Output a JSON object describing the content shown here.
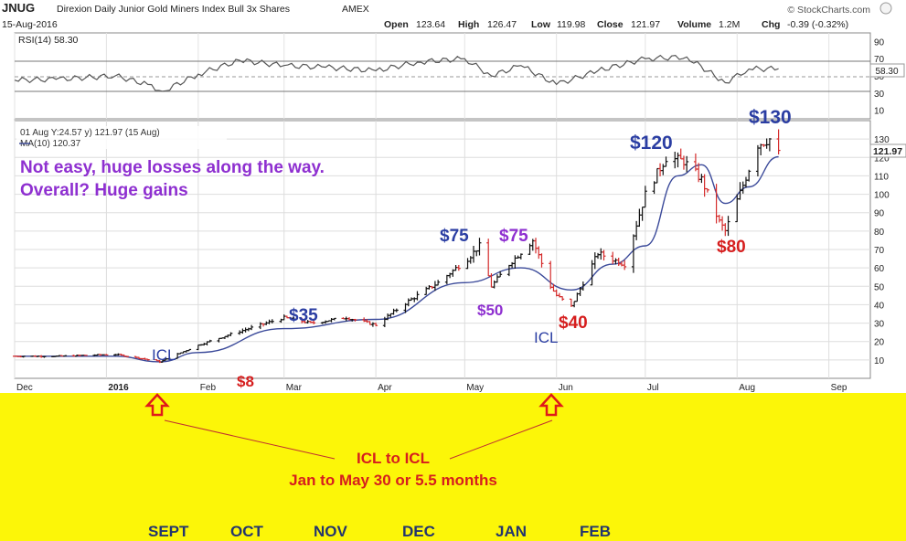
{
  "header": {
    "symbol": "JNUG",
    "name": "Direxion Daily Junior Gold Miners Index Bull 3x Shares",
    "exchange": "AMEX",
    "date": "15-Aug-2016",
    "source": "© StockCharts.com",
    "open_label": "Open",
    "open_value": "123.64",
    "high_label": "High",
    "high_value": "126.47",
    "low_label": "Low",
    "low_value": "119.98",
    "close_label": "Close",
    "close_value": "121.97",
    "volume_label": "Volume",
    "volume_value": "1.2M",
    "chg_label": "Chg",
    "chg_value": "-0.39 (-0.32%)"
  },
  "rsi_panel": {
    "label": "RSI(14) 58.30",
    "tick_labels": [
      "90",
      "70",
      "50",
      "30",
      "10"
    ],
    "last_value_badge": "58.30"
  },
  "price_panel": {
    "legend_line1": "01 Aug Y:24.57 y) 121.97 (15 Aug)",
    "legend_line2": "MA(10) 120.37",
    "last_price_badge": "121.97",
    "tick_labels": [
      "130",
      "120",
      "110",
      "100",
      "90",
      "80",
      "70",
      "60",
      "50",
      "40",
      "30",
      "20",
      "10"
    ]
  },
  "x_axis": {
    "labels": [
      "Dec",
      "2016",
      "Feb",
      "Mar",
      "Apr",
      "May",
      "Jun",
      "Jul",
      "Aug",
      "Sep"
    ]
  },
  "annotations": {
    "headline_line1": "Not easy,  huge losses along the way.",
    "headline_line2": "Overall? Huge gains",
    "icl_1": "ICL",
    "icl_2": "ICL",
    "low_8": "$8",
    "p35": "$35",
    "p75a": "$75",
    "p75b": "$75",
    "p50": "$50",
    "p40": "$40",
    "p120": "$120",
    "p80": "$80",
    "p130": "$130",
    "icl_span_line1": "ICL  to  ICL",
    "icl_span_line2": "Jan to May 30 or  5.5 months"
  },
  "bottom_months": [
    "SEPT",
    "OCT",
    "NOV",
    "DEC",
    "JAN",
    "FEB"
  ],
  "colors": {
    "up": "#111111",
    "down": "#d42a2a",
    "ma": "#3b4a9a",
    "annotation_blue": "#2b3ea3",
    "annotation_purple": "#8e2fd0",
    "annotation_red": "#d61e1e",
    "highlight_bg": "#fcf608"
  },
  "chart_data": [
    {
      "type": "line",
      "title": "RSI(14) 58.30",
      "y_range": [
        0,
        100
      ],
      "reference_lines": [
        70,
        50,
        30
      ],
      "x": [
        "2015-12-01",
        "2015-12-15",
        "2016-01-04",
        "2016-01-15",
        "2016-01-20",
        "2016-02-01",
        "2016-02-15",
        "2016-03-01",
        "2016-03-15",
        "2016-04-01",
        "2016-04-15",
        "2016-05-01",
        "2016-05-10",
        "2016-05-20",
        "2016-06-01",
        "2016-06-15",
        "2016-07-01",
        "2016-07-15",
        "2016-07-28",
        "2016-08-05",
        "2016-08-15"
      ],
      "values": [
        45,
        46,
        50,
        40,
        32,
        52,
        68,
        62,
        60,
        56,
        66,
        70,
        50,
        62,
        40,
        56,
        70,
        72,
        42,
        58,
        58.3
      ]
    },
    {
      "type": "bar",
      "subtype": "ohlc",
      "title": "JNUG Direxion Daily Junior Gold Miners Index Bull 3x Shares",
      "y_range": [
        0,
        140
      ],
      "x_range": [
        "2015-12-01",
        "2016-09-15"
      ],
      "series": [
        {
          "name": "Price",
          "x": [
            "2015-12-01",
            "2015-12-15",
            "2016-01-04",
            "2016-01-12",
            "2016-01-19",
            "2016-02-01",
            "2016-02-12",
            "2016-03-01",
            "2016-03-10",
            "2016-03-22",
            "2016-04-01",
            "2016-04-12",
            "2016-04-22",
            "2016-05-02",
            "2016-05-06",
            "2016-05-10",
            "2016-05-16",
            "2016-05-24",
            "2016-05-30",
            "2016-06-01",
            "2016-06-06",
            "2016-06-15",
            "2016-06-24",
            "2016-07-01",
            "2016-07-08",
            "2016-07-14",
            "2016-07-20",
            "2016-07-26",
            "2016-07-28",
            "2016-08-03",
            "2016-08-08",
            "2016-08-12",
            "2016-08-15"
          ],
          "values": [
            12,
            12,
            13,
            11,
            9,
            18,
            24,
            33,
            30,
            33,
            29,
            42,
            52,
            65,
            72,
            50,
            62,
            75,
            50,
            45,
            39,
            68,
            62,
            100,
            120,
            118,
            108,
            85,
            80,
            105,
            127,
            130,
            121.97
          ]
        },
        {
          "name": "MA(10) 120.37",
          "x": [
            "2015-12-01",
            "2016-01-04",
            "2016-01-19",
            "2016-02-01",
            "2016-03-01",
            "2016-04-01",
            "2016-05-01",
            "2016-05-20",
            "2016-06-06",
            "2016-06-20",
            "2016-07-01",
            "2016-07-12",
            "2016-07-20",
            "2016-07-28",
            "2016-08-05",
            "2016-08-15"
          ],
          "values": [
            12,
            12,
            9,
            14,
            27,
            32,
            52,
            60,
            48,
            62,
            72,
            110,
            116,
            95,
            104,
            120.37
          ]
        }
      ]
    }
  ]
}
